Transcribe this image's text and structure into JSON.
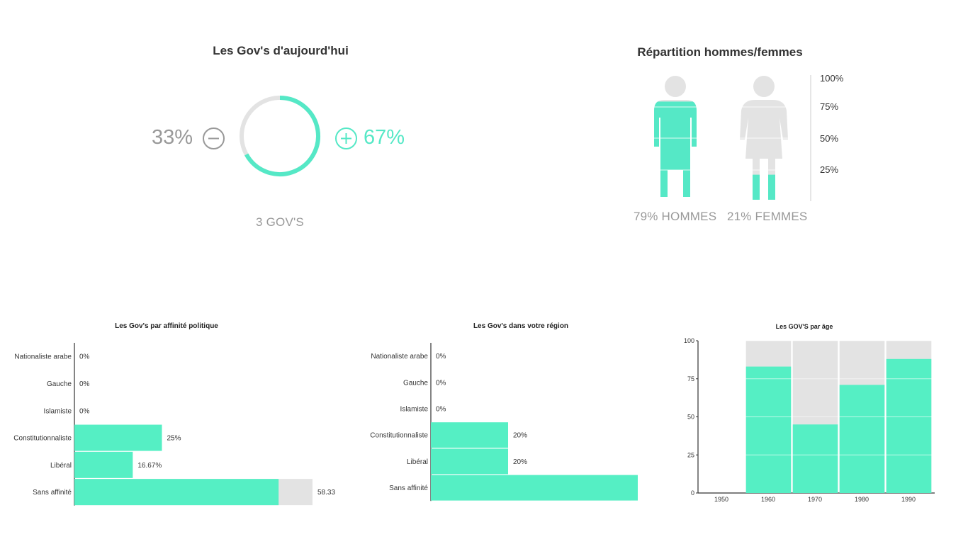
{
  "colors": {
    "accent": "#55efc4",
    "track": "#e3e3e3",
    "muted": "#999999",
    "axis": "#333333"
  },
  "today_panel": {
    "title": "Les Gov's d'aujourd'hui",
    "minus_value": "33%",
    "plus_value": "67%",
    "minus_icon": "minus-circle-icon",
    "plus_icon": "plus-circle-icon",
    "count_label": "3 GOV'S"
  },
  "gender_panel": {
    "title": "Répartition hommes/femmes",
    "men_label": "79% HOMMES",
    "women_label": "21% FEMMES",
    "scale_labels": [
      "100%",
      "75%",
      "50%",
      "25%"
    ],
    "men_icon": "man-silhouette-icon",
    "women_icon": "woman-silhouette-icon"
  },
  "chart_data": [
    {
      "type": "donut",
      "title": "Les Gov's d'aujourd'hui",
      "slices": [
        {
          "label": "−",
          "value": 33
        },
        {
          "label": "+",
          "value": 67
        }
      ]
    },
    {
      "type": "pictogram",
      "title": "Répartition hommes/femmes",
      "categories": [
        "HOMMES",
        "FEMMES"
      ],
      "values": [
        79,
        21
      ]
    },
    {
      "type": "bar",
      "orientation": "horizontal",
      "title": "Les Gov's par affinité politique",
      "categories": [
        "Nationaliste arabe",
        "Gauche",
        "Islamiste",
        "Constitutionnaliste",
        "Libéral",
        "Sans affinité"
      ],
      "values": [
        0,
        0,
        0,
        25,
        16.67,
        58.33
      ],
      "value_labels": [
        "0%",
        "0%",
        "0%",
        "25%",
        "16.67%",
        "58.33"
      ],
      "xlim": [
        0,
        100
      ]
    },
    {
      "type": "bar",
      "orientation": "horizontal",
      "title": "Les Gov's dans votre région",
      "categories": [
        "Nationaliste arabe",
        "Gauche",
        "Islamiste",
        "Constitutionnaliste",
        "Libéral",
        "Sans affinité"
      ],
      "values": [
        0,
        0,
        0,
        20,
        20,
        60
      ],
      "value_labels": [
        "0%",
        "0%",
        "0%",
        "20%",
        "20%",
        ""
      ],
      "xlim": [
        0,
        100
      ]
    },
    {
      "type": "bar",
      "title": "Les GOV'S par âge",
      "categories": [
        "1950",
        "1960",
        "1970",
        "1980",
        "1990"
      ],
      "values": [
        0,
        83,
        45,
        71,
        88
      ],
      "ylim": [
        0,
        100
      ],
      "yticks": [
        "100",
        "75",
        "50",
        "25",
        "0"
      ],
      "grid": true
    }
  ]
}
